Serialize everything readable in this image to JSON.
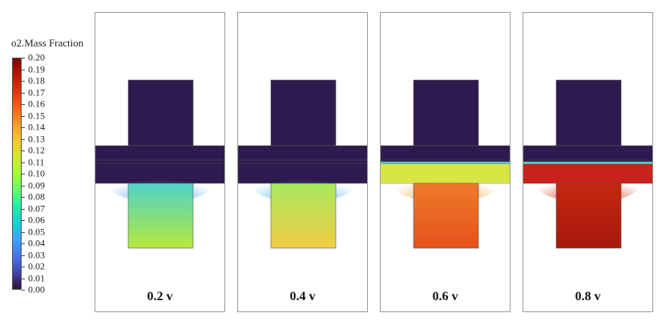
{
  "legend": {
    "title": "o2.Mass Fraction",
    "ticks": [
      "0.00",
      "0.01",
      "0.02",
      "0.03",
      "0.04",
      "0.05",
      "0.06",
      "0.07",
      "0.08",
      "0.09",
      "0.10",
      "0.11",
      "0.12",
      "0.13",
      "0.14",
      "0.15",
      "0.16",
      "0.17",
      "0.18",
      "0.19",
      "0.20"
    ],
    "gradient": [
      "#30123b",
      "#4145ab",
      "#4675ed",
      "#39a2fc",
      "#1bcfd4",
      "#24eca6",
      "#61fc6c",
      "#a4fc3b",
      "#d1e834",
      "#f3c63a",
      "#fe9b2d",
      "#f36315",
      "#d93806",
      "#b11901",
      "#7a0402"
    ]
  },
  "panels": [
    {
      "label": "0.2 v",
      "voltage": 0.2
    },
    {
      "label": "0.4 v",
      "voltage": 0.4
    },
    {
      "label": "0.6 v",
      "voltage": 0.6
    },
    {
      "label": "0.8 v",
      "voltage": 0.8
    }
  ],
  "colors": {
    "low": "#2e1a4f",
    "p1_lower": "#b6e83c",
    "p1_lower_top": "#4fd3c8",
    "p1_glow": "#5fa8f0",
    "p2_lower": "#f2cc45",
    "p2_lower_top": "#a8e860",
    "p2_glow": "#49b7f5",
    "p3_lower": "#e5521b",
    "p3_lower_top": "#ee7a2a",
    "p3_band": "#d8e645",
    "p3_glow": "#f09f38",
    "p4_lower": "#a8180c",
    "p4_lower_top": "#c52710",
    "p4_band": "#c8221a",
    "p4_glow": "#d62f12"
  }
}
